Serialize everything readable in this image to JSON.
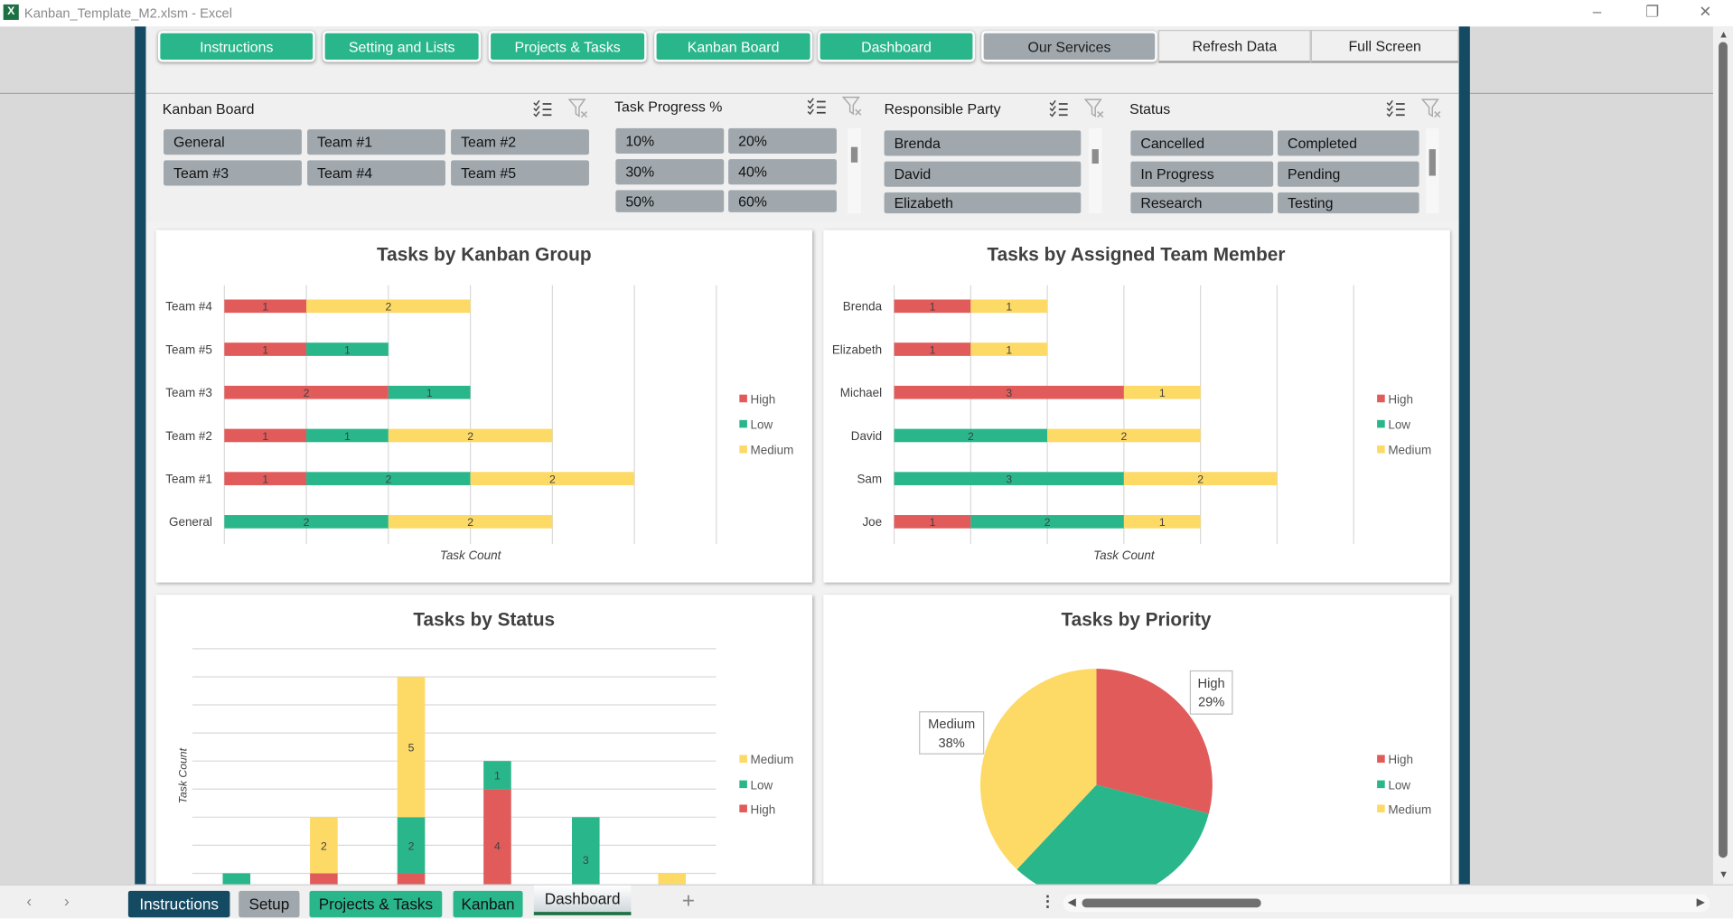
{
  "window": {
    "title": "Kanban_Template_M2.xlsm - Excel",
    "app_icon": "excel-icon"
  },
  "nav": {
    "buttons": [
      "Instructions",
      "Setting and Lists",
      "Projects & Tasks",
      "Kanban Board",
      "Dashboard",
      "Our Services"
    ],
    "refresh": "Refresh Data",
    "fullscreen": "Full Screen"
  },
  "slicers": [
    {
      "title": "Kanban Board",
      "items": [
        "General",
        "Team #1",
        "Team #2",
        "Team #3",
        "Team #4",
        "Team #5"
      ]
    },
    {
      "title": "Task Progress %",
      "items": [
        "10%",
        "20%",
        "30%",
        "40%",
        "50%",
        "60%"
      ]
    },
    {
      "title": "Responsible Party",
      "items": [
        "Brenda",
        "David",
        "Elizabeth"
      ]
    },
    {
      "title": "Status",
      "items": [
        "Cancelled",
        "Completed",
        "In Progress",
        "Pending",
        "Research",
        "Testing"
      ]
    }
  ],
  "colors": {
    "high": "#e15b5b",
    "low": "#2ab68b",
    "medium": "#fdd966",
    "accent": "#2ab68b",
    "frame": "#154a63",
    "slicer_item": "#a0a8ae"
  },
  "chart_data": [
    {
      "type": "bar",
      "orientation": "horizontal",
      "stacked": true,
      "title": "Tasks by Kanban Group",
      "xlabel": "Task Count",
      "xlim": [
        0,
        6
      ],
      "grid": true,
      "legend": "right",
      "categories": [
        "Team #4",
        "Team #5",
        "Team #3",
        "Team #2",
        "Team #1",
        "General"
      ],
      "series": [
        {
          "name": "High",
          "values": [
            1,
            1,
            2,
            1,
            1,
            0
          ]
        },
        {
          "name": "Low",
          "values": [
            0,
            1,
            1,
            1,
            2,
            2
          ]
        },
        {
          "name": "Medium",
          "values": [
            2,
            0,
            0,
            2,
            2,
            2
          ]
        }
      ]
    },
    {
      "type": "bar",
      "orientation": "horizontal",
      "stacked": true,
      "title": "Tasks by Assigned Team Member",
      "xlabel": "Task Count",
      "xlim": [
        0,
        6
      ],
      "grid": true,
      "legend": "right",
      "categories": [
        "Brenda",
        "Elizabeth",
        "Michael",
        "David",
        "Sam",
        "Joe"
      ],
      "series": [
        {
          "name": "High",
          "values": [
            1,
            1,
            3,
            0,
            0,
            1
          ]
        },
        {
          "name": "Low",
          "values": [
            0,
            0,
            0,
            2,
            3,
            2
          ]
        },
        {
          "name": "Medium",
          "values": [
            1,
            1,
            1,
            2,
            2,
            1
          ]
        }
      ]
    },
    {
      "type": "bar",
      "orientation": "vertical",
      "stacked": true,
      "title": "Tasks by Status",
      "ylabel": "Task Count",
      "ylim": [
        0,
        9
      ],
      "grid": true,
      "legend": "right",
      "series": [
        {
          "name": "High",
          "values": [
            0,
            1,
            1,
            4,
            0,
            0
          ]
        },
        {
          "name": "Low",
          "values": [
            1,
            0,
            2,
            1,
            3,
            0
          ]
        },
        {
          "name": "Medium",
          "values": [
            0,
            2,
            5,
            0,
            0,
            1
          ]
        }
      ],
      "legend_order": [
        "Medium",
        "Low",
        "High"
      ]
    },
    {
      "type": "pie",
      "title": "Tasks by Priority",
      "legend": "right",
      "slices": [
        {
          "name": "High",
          "percent": 29,
          "label": "High",
          "label_value": "29%"
        },
        {
          "name": "Low",
          "percent": 33
        },
        {
          "name": "Medium",
          "percent": 38,
          "label": "Medium",
          "label_value": "38%"
        }
      ]
    }
  ],
  "sheet_tabs": {
    "tabs": [
      "Instructions",
      "Setup",
      "Projects & Tasks",
      "Kanban",
      "Dashboard"
    ],
    "active": "Dashboard",
    "add": "+"
  }
}
